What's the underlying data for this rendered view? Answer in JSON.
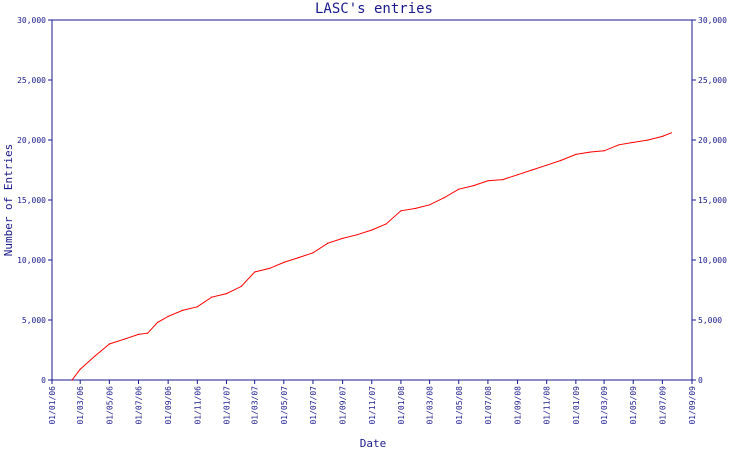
{
  "chart_data": {
    "type": "line",
    "title": "LASC's entries",
    "xlabel": "Date",
    "ylabel": "Number of Entries",
    "x_ticks": [
      "01/01/06",
      "01/03/06",
      "01/05/06",
      "01/07/06",
      "01/09/06",
      "01/11/06",
      "01/01/07",
      "01/03/07",
      "01/05/07",
      "01/07/07",
      "01/09/07",
      "01/11/07",
      "01/01/08",
      "01/03/08",
      "01/05/08",
      "01/07/08",
      "01/09/08",
      "01/11/08",
      "01/01/09",
      "01/03/09",
      "01/05/09",
      "01/07/09",
      "01/09/09"
    ],
    "y_ticks": [
      "0",
      "5,000",
      "10,000",
      "15,000",
      "20,000",
      "25,000",
      "30,000"
    ],
    "ylim": [
      0,
      30000
    ],
    "xlim": [
      "2006-01-01",
      "2009-09-01"
    ],
    "grid": false,
    "series": [
      {
        "color": "#ff0000",
        "x": [
          "2006-02-12",
          "2006-03-01",
          "2006-04-01",
          "2006-05-01",
          "2006-06-01",
          "2006-07-01",
          "2006-07-20",
          "2006-08-10",
          "2006-09-01",
          "2006-10-01",
          "2006-11-01",
          "2006-12-01",
          "2007-01-01",
          "2007-02-01",
          "2007-03-01",
          "2007-04-01",
          "2007-05-01",
          "2007-06-01",
          "2007-07-01",
          "2007-08-01",
          "2007-09-01",
          "2007-10-01",
          "2007-11-01",
          "2007-12-01",
          "2008-01-01",
          "2008-02-01",
          "2008-03-01",
          "2008-04-01",
          "2008-05-01",
          "2008-06-01",
          "2008-07-01",
          "2008-08-01",
          "2008-09-01",
          "2008-10-01",
          "2008-11-01",
          "2008-12-01",
          "2009-01-01",
          "2009-02-01",
          "2009-03-01",
          "2009-04-01",
          "2009-05-01",
          "2009-06-01",
          "2009-07-01",
          "2009-07-20"
        ],
        "values": [
          0,
          900,
          2000,
          3000,
          3400,
          3800,
          3900,
          4800,
          5300,
          5800,
          6100,
          6900,
          7200,
          7800,
          9000,
          9300,
          9800,
          10200,
          10600,
          11400,
          11800,
          12100,
          12500,
          13000,
          14100,
          14300,
          14600,
          15200,
          15900,
          16200,
          16600,
          16700,
          17100,
          17500,
          17900,
          18300,
          18800,
          19000,
          19100,
          19600,
          19800,
          20000,
          20300,
          20600
        ]
      }
    ]
  }
}
